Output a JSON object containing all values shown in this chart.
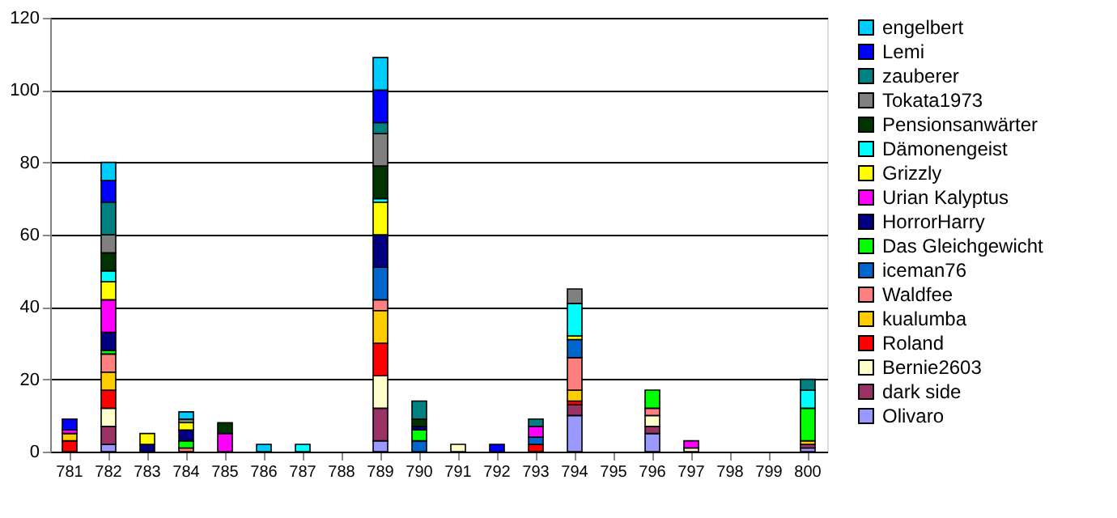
{
  "chart_data": {
    "type": "bar",
    "stacked": true,
    "categories": [
      "781",
      "782",
      "783",
      "784",
      "785",
      "786",
      "787",
      "788",
      "789",
      "790",
      "791",
      "792",
      "793",
      "794",
      "795",
      "796",
      "797",
      "798",
      "799",
      "800"
    ],
    "ylim": [
      0,
      120
    ],
    "yticks": [
      0,
      20,
      40,
      60,
      80,
      100,
      120
    ],
    "grid": "y",
    "legend": "right",
    "series": [
      {
        "name": "Olivaro",
        "color": "#9999ff",
        "values": [
          null,
          2,
          null,
          null,
          null,
          null,
          null,
          null,
          3,
          null,
          null,
          null,
          null,
          10,
          null,
          5,
          null,
          null,
          null,
          1
        ]
      },
      {
        "name": "dark side",
        "color": "#993366",
        "values": [
          null,
          5,
          null,
          null,
          null,
          null,
          null,
          null,
          9,
          null,
          null,
          null,
          null,
          3,
          null,
          2,
          null,
          null,
          null,
          1
        ]
      },
      {
        "name": "Bernie2603",
        "color": "#ffffcc",
        "values": [
          null,
          5,
          null,
          null,
          null,
          null,
          null,
          null,
          9,
          null,
          2,
          null,
          null,
          null,
          null,
          3,
          1,
          null,
          null,
          null
        ]
      },
      {
        "name": "Roland",
        "color": "#ff0000",
        "values": [
          3,
          5,
          null,
          null,
          null,
          null,
          null,
          null,
          9,
          null,
          null,
          null,
          2,
          1,
          null,
          null,
          null,
          null,
          null,
          null
        ]
      },
      {
        "name": "kualumba",
        "color": "#ffcc00",
        "values": [
          2,
          5,
          null,
          null,
          null,
          null,
          null,
          null,
          9,
          null,
          null,
          null,
          null,
          3,
          null,
          null,
          null,
          null,
          null,
          1
        ]
      },
      {
        "name": "Waldfee",
        "color": "#ff8080",
        "values": [
          null,
          5,
          null,
          1,
          null,
          null,
          null,
          null,
          3,
          null,
          null,
          null,
          null,
          9,
          null,
          2,
          null,
          null,
          null,
          null
        ]
      },
      {
        "name": "iceman76",
        "color": "#0066cc",
        "values": [
          null,
          null,
          null,
          null,
          null,
          null,
          null,
          null,
          9,
          3,
          null,
          null,
          2,
          5,
          null,
          null,
          null,
          null,
          null,
          null
        ]
      },
      {
        "name": "Das Gleichgewicht",
        "color": "#00ff00",
        "values": [
          null,
          1,
          null,
          2,
          null,
          null,
          null,
          null,
          null,
          3,
          null,
          null,
          null,
          null,
          null,
          5,
          null,
          null,
          null,
          9
        ]
      },
      {
        "name": "HorrorHarry",
        "color": "#000080",
        "values": [
          null,
          5,
          2,
          3,
          null,
          null,
          null,
          null,
          9,
          1,
          null,
          null,
          null,
          null,
          null,
          null,
          null,
          null,
          null,
          null
        ]
      },
      {
        "name": "Urian Kalyptus",
        "color": "#ff00ff",
        "values": [
          1,
          9,
          null,
          null,
          5,
          null,
          null,
          null,
          null,
          null,
          null,
          null,
          3,
          null,
          null,
          null,
          2,
          null,
          null,
          null
        ]
      },
      {
        "name": "Grizzly",
        "color": "#ffff00",
        "values": [
          null,
          5,
          3,
          2,
          null,
          null,
          null,
          null,
          9,
          null,
          null,
          null,
          null,
          1,
          null,
          null,
          null,
          null,
          null,
          null
        ]
      },
      {
        "name": "Dämonengeist",
        "color": "#00ffff",
        "values": [
          null,
          3,
          null,
          null,
          null,
          null,
          2,
          null,
          1,
          null,
          null,
          null,
          null,
          9,
          null,
          null,
          null,
          null,
          null,
          5
        ]
      },
      {
        "name": "Pensionsanwärter",
        "color": "#003300",
        "values": [
          null,
          5,
          null,
          null,
          3,
          null,
          null,
          null,
          9,
          2,
          null,
          null,
          null,
          null,
          null,
          null,
          null,
          null,
          null,
          null
        ]
      },
      {
        "name": "Tokata1973",
        "color": "#808080",
        "values": [
          null,
          5,
          null,
          1,
          null,
          null,
          null,
          null,
          9,
          null,
          null,
          null,
          null,
          4,
          null,
          null,
          null,
          null,
          null,
          null
        ]
      },
      {
        "name": "zauberer",
        "color": "#008080",
        "values": [
          null,
          9,
          null,
          null,
          null,
          null,
          null,
          null,
          3,
          5,
          null,
          null,
          2,
          null,
          null,
          null,
          null,
          null,
          null,
          3
        ]
      },
      {
        "name": "Lemi",
        "color": "#0000ff",
        "values": [
          3,
          6,
          null,
          null,
          null,
          null,
          null,
          null,
          9,
          null,
          null,
          2,
          null,
          null,
          null,
          null,
          null,
          null,
          null,
          null
        ]
      },
      {
        "name": "engelbert",
        "color": "#00ccff",
        "values": [
          null,
          5,
          null,
          2,
          null,
          2,
          null,
          null,
          9,
          null,
          null,
          null,
          null,
          null,
          null,
          null,
          null,
          null,
          null,
          null
        ]
      }
    ]
  }
}
